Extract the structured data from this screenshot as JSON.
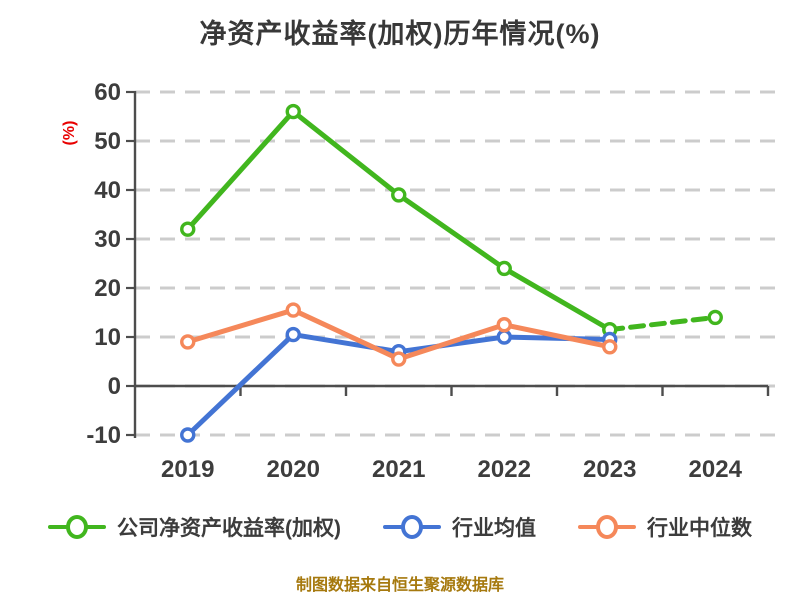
{
  "title": "净资产收益率(加权)历年情况(%)",
  "footer": "制图数据来自恒生聚源数据库",
  "colors": {
    "company_series": "#41b61e",
    "industry_mean_series": "#4374d4",
    "industry_median_series": "#f5885a",
    "grid": "#cccccc",
    "axis": "#4d4d4d",
    "tick_label": "#3d3d3d",
    "title_text": "#383838",
    "y_unit_label": "#e80000",
    "footer_text": "#a6790e"
  },
  "chart_data": {
    "type": "line",
    "title": "净资产收益率(加权)历年情况(%)",
    "categories": [
      "2019",
      "2020",
      "2021",
      "2022",
      "2023",
      "2024"
    ],
    "y_ticks": [
      60,
      50,
      40,
      30,
      20,
      10,
      0,
      -10
    ],
    "ylim": [
      -10,
      60
    ],
    "xlabel": "",
    "ylabel": "(%)",
    "grid": true,
    "grid_style": "dashed",
    "legend_position": "bottom",
    "series": [
      {
        "name": "公司净资产收益率(加权)",
        "color": "#41b61e",
        "values": [
          32,
          56,
          39,
          24,
          11.5,
          14
        ],
        "dashed_from_index": 4
      },
      {
        "name": "行业均值",
        "color": "#4374d4",
        "values": [
          -10,
          10.5,
          7,
          10,
          9.5,
          null
        ],
        "dashed_from_index": null
      },
      {
        "name": "行业中位数",
        "color": "#f5885a",
        "values": [
          9,
          15.5,
          5.5,
          12.5,
          8,
          null
        ],
        "dashed_from_index": null
      }
    ],
    "annotation": "公司series的2023-2024段为虚线"
  }
}
